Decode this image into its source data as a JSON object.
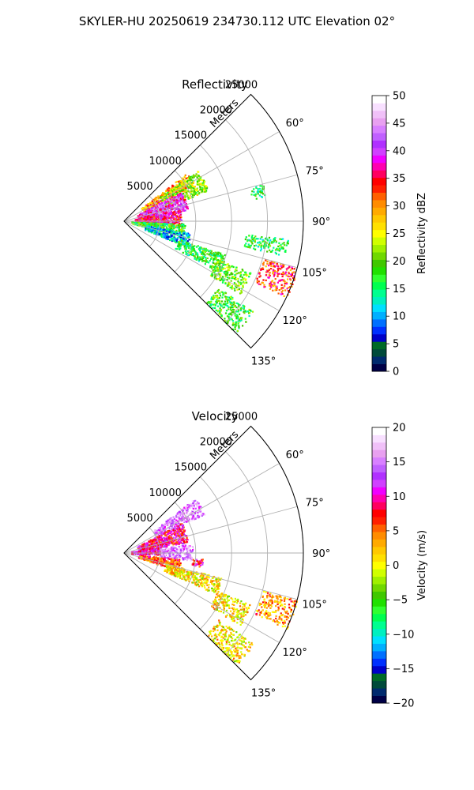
{
  "figure": {
    "suptitle": "SKYLER-HU  20250619  234730.112 UTC Elevation 02°"
  },
  "chart_data": [
    {
      "type": "heatmap",
      "title": "Reflectivity",
      "radial_label": "Meters",
      "radial_ticks": [
        5000,
        10000,
        15000,
        20000,
        25000
      ],
      "radial_tick_labels": [
        "5000",
        "10000",
        "15000",
        "20000",
        "25000"
      ],
      "rlim": [
        0,
        25000
      ],
      "angle_range_deg": [
        45,
        135
      ],
      "angle_ticks": [
        60,
        75,
        90,
        105,
        120,
        135
      ],
      "angle_tick_labels": [
        "60°",
        "75°",
        "90°",
        "105°",
        "120°",
        "135°"
      ],
      "grid": true,
      "colorbar": {
        "label": "Reflectivity dBZ",
        "vmin": 0,
        "vmax": 50,
        "ticks": [
          0,
          5,
          10,
          15,
          20,
          25,
          30,
          35,
          40,
          45,
          50
        ],
        "tick_labels": [
          "0",
          "5",
          "10",
          "15",
          "20",
          "25",
          "30",
          "35",
          "40",
          "45",
          "50"
        ],
        "colors": [
          "#000046",
          "#002a6e",
          "#004a3a",
          "#006a28",
          "#0000c8",
          "#0030ff",
          "#0070ff",
          "#00b0ff",
          "#00e0ff",
          "#00f0c0",
          "#00ff90",
          "#00ff50",
          "#30ff30",
          "#20e000",
          "#40c800",
          "#70d800",
          "#a0f000",
          "#d0ff00",
          "#ffff00",
          "#ffe000",
          "#ffc800",
          "#ffaa00",
          "#ff8c00",
          "#ff6000",
          "#ff2000",
          "#ff0000",
          "#ff0060",
          "#ff00b0",
          "#f000ff",
          "#d040ff",
          "#b030ff",
          "#c060ff",
          "#d880ff",
          "#e8a0f0",
          "#f0c0f8",
          "#f8e0ff",
          "#ffffff"
        ]
      },
      "echo_regions": [
        {
          "az": [
            52,
            62
          ],
          "range": [
            3000,
            11000
          ],
          "value": 30
        },
        {
          "az": [
            55,
            70
          ],
          "range": [
            6000,
            12500
          ],
          "value": 22
        },
        {
          "az": [
            62,
            80
          ],
          "range": [
            2000,
            9000
          ],
          "value": 40
        },
        {
          "az": [
            78,
            95
          ],
          "range": [
            1500,
            8000
          ],
          "value": 36
        },
        {
          "az": [
            92,
            104
          ],
          "range": [
            1000,
            8500
          ],
          "value": 18
        },
        {
          "az": [
            100,
            112
          ],
          "range": [
            3000,
            9500
          ],
          "value": 11
        },
        {
          "az": [
            108,
            118
          ],
          "range": [
            8000,
            15000
          ],
          "value": 17
        },
        {
          "az": [
            112,
            122
          ],
          "range": [
            14000,
            19000
          ],
          "value": 20
        },
        {
          "az": [
            105,
            115
          ],
          "range": [
            20000,
            25000
          ],
          "value": 33
        },
        {
          "az": [
            125,
            135
          ],
          "range": [
            16000,
            22000
          ],
          "value": 18
        },
        {
          "az": [
            75,
            80
          ],
          "range": [
            18000,
            20000
          ],
          "value": 16
        },
        {
          "az": [
            96,
            102
          ],
          "range": [
            17000,
            23000
          ],
          "value": 17
        }
      ]
    },
    {
      "type": "heatmap",
      "title": "Velocity",
      "radial_label": "Meters",
      "radial_ticks": [
        5000,
        10000,
        15000,
        20000,
        25000
      ],
      "radial_tick_labels": [
        "5000",
        "10000",
        "15000",
        "20000",
        "25000"
      ],
      "rlim": [
        0,
        25000
      ],
      "angle_range_deg": [
        45,
        135
      ],
      "angle_ticks": [
        60,
        75,
        90,
        105,
        120,
        135
      ],
      "angle_tick_labels": [
        "60°",
        "75°",
        "90°",
        "105°",
        "120°",
        "135°"
      ],
      "grid": true,
      "colorbar": {
        "label": "Velocity (m/s)",
        "vmin": -20,
        "vmax": 20,
        "ticks": [
          -20,
          -15,
          -10,
          -5,
          0,
          5,
          10,
          15,
          20
        ],
        "tick_labels": [
          "−20",
          "−15",
          "−10",
          "−5",
          "0",
          "5",
          "10",
          "15",
          "20"
        ],
        "colors": [
          "#000046",
          "#002a6e",
          "#004a3a",
          "#006a28",
          "#0000c8",
          "#0030ff",
          "#0070ff",
          "#00b0ff",
          "#00e0ff",
          "#00f0c0",
          "#00ff90",
          "#00ff50",
          "#30ff30",
          "#20e000",
          "#40c800",
          "#70d800",
          "#a0f000",
          "#d0ff00",
          "#ffff00",
          "#ffe000",
          "#ffc800",
          "#ffaa00",
          "#ff8c00",
          "#ff6000",
          "#ff2000",
          "#ff0000",
          "#ff0060",
          "#ff00b0",
          "#f000ff",
          "#d040ff",
          "#b030ff",
          "#c060ff",
          "#d880ff",
          "#e8a0f0",
          "#f0c0f8",
          "#f8e0ff",
          "#ffffff"
        ]
      },
      "echo_regions": [
        {
          "az": [
            52,
            64
          ],
          "range": [
            5000,
            12500
          ],
          "value": 15
        },
        {
          "az": [
            62,
            80
          ],
          "range": [
            2000,
            9000
          ],
          "value": 9
        },
        {
          "az": [
            78,
            92
          ],
          "range": [
            1000,
            6000
          ],
          "value": 10
        },
        {
          "az": [
            82,
            96
          ],
          "range": [
            5000,
            9500
          ],
          "value": 15
        },
        {
          "az": [
            96,
            108
          ],
          "range": [
            2000,
            8000
          ],
          "value": 6
        },
        {
          "az": [
            104,
            114
          ],
          "range": [
            6000,
            14000
          ],
          "value": 1
        },
        {
          "az": [
            94,
            100
          ],
          "range": [
            9500,
            11000
          ],
          "value": 8
        },
        {
          "az": [
            112,
            122
          ],
          "range": [
            14000,
            19000
          ],
          "value": 1
        },
        {
          "az": [
            105,
            115
          ],
          "range": [
            20000,
            25000
          ],
          "value": 4
        },
        {
          "az": [
            125,
            135
          ],
          "range": [
            16000,
            22000
          ],
          "value": 1
        }
      ]
    }
  ]
}
